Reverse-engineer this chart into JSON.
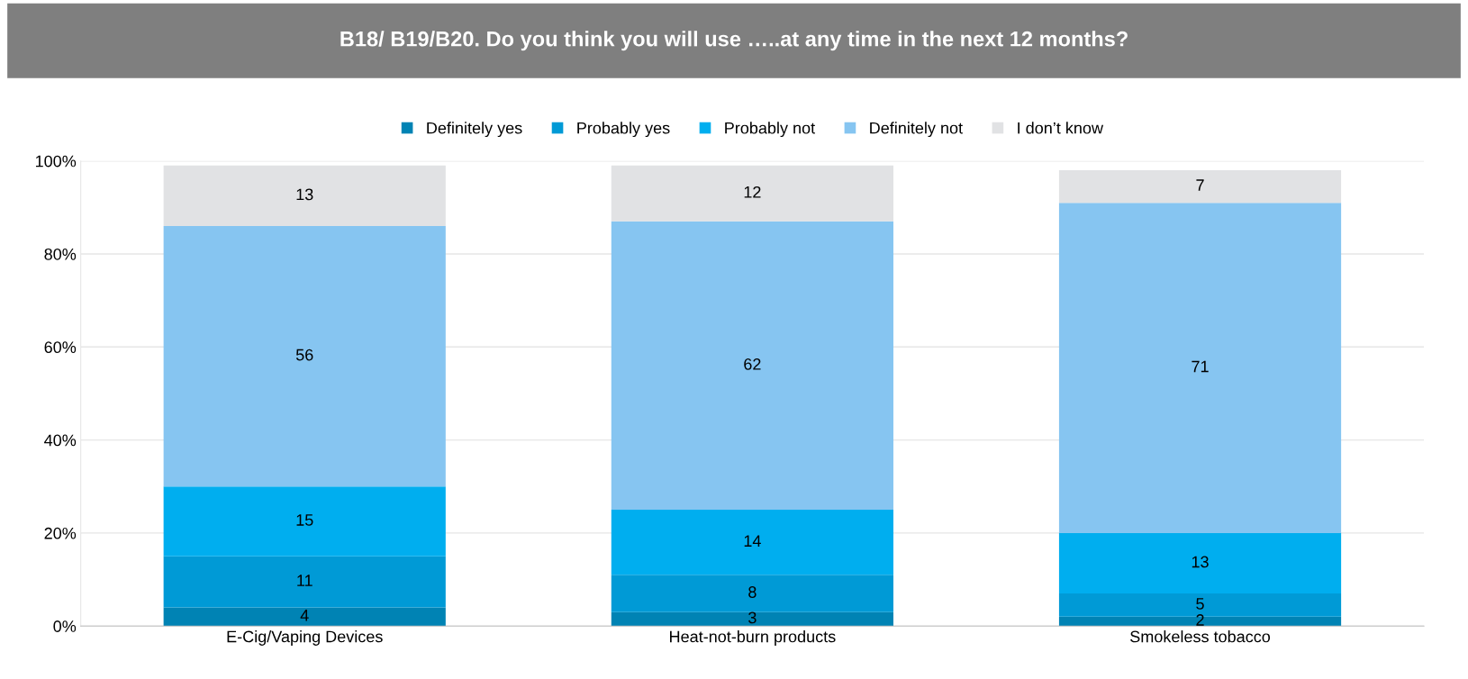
{
  "chart_data": {
    "type": "bar",
    "stacked": true,
    "title": "B18/ B19/B20. Do you think you will use …..at any time in the next 12 months?",
    "categories": [
      "E-Cig/Vaping Devices",
      "Heat-not-burn products",
      "Smokeless tobacco"
    ],
    "series": [
      {
        "name": "Definitely yes",
        "color": "#0083b4",
        "values": [
          4,
          3,
          2
        ]
      },
      {
        "name": "Probably yes",
        "color": "#009ad6",
        "values": [
          11,
          8,
          5
        ]
      },
      {
        "name": "Probably not",
        "color": "#00aeef",
        "values": [
          15,
          14,
          13
        ]
      },
      {
        "name": "Definitely not",
        "color": "#86c5f1",
        "values": [
          56,
          62,
          71
        ]
      },
      {
        "name": "I don’t know",
        "color": "#e1e2e4",
        "values": [
          13,
          12,
          7
        ]
      }
    ],
    "ylim": [
      0,
      100
    ],
    "yticks": [
      {
        "value": 0,
        "label": "0%"
      },
      {
        "value": 20,
        "label": "20%"
      },
      {
        "value": 40,
        "label": "40%"
      },
      {
        "value": 60,
        "label": "60%"
      },
      {
        "value": 80,
        "label": "80%"
      },
      {
        "value": 100,
        "label": "100%"
      }
    ],
    "grid": "y",
    "legend": "top",
    "data_labels": true
  }
}
